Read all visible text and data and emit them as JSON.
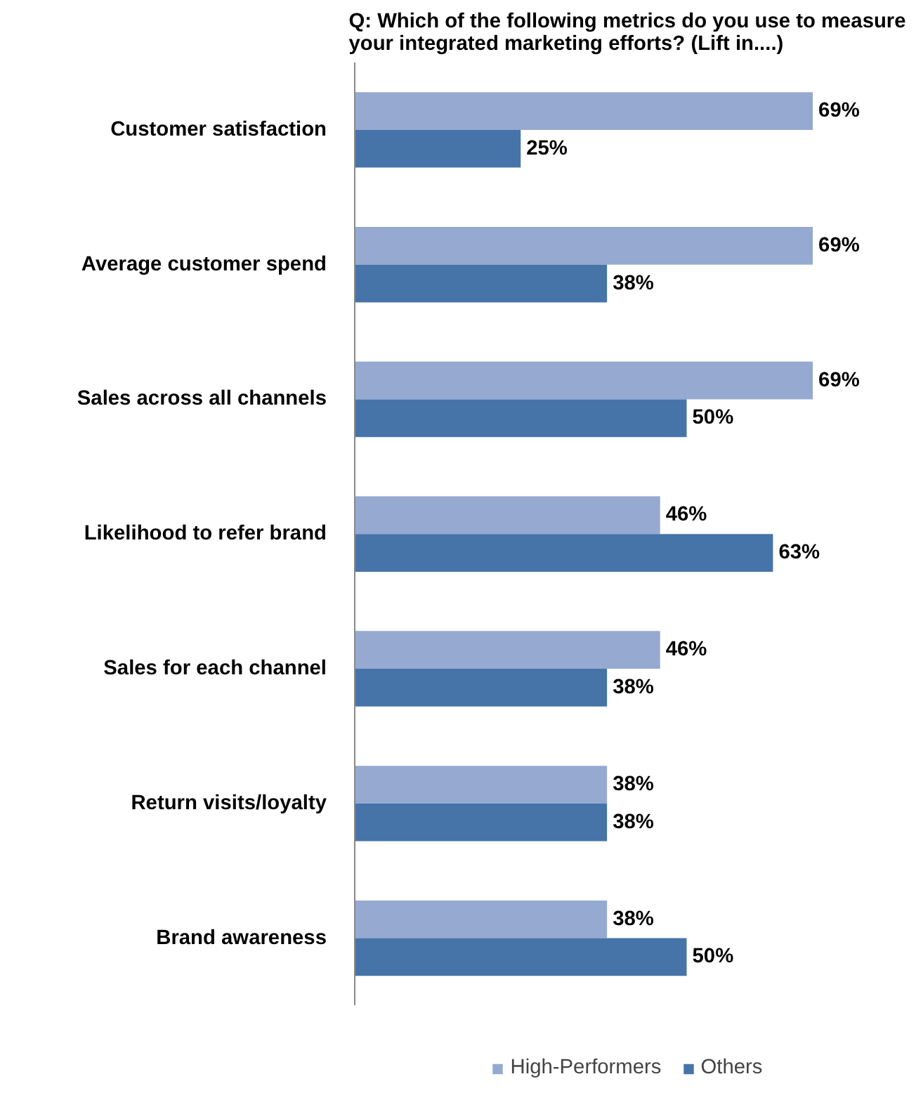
{
  "chart_data": {
    "type": "bar",
    "orientation": "horizontal",
    "title": "Q: Which of the following metrics do you use to measure\nyour integrated marketing efforts? (Lift in....)",
    "categories": [
      "Customer satisfaction",
      "Average customer spend",
      "Sales across all channels",
      "Likelihood to refer brand",
      "Sales for each channel",
      "Return visits/loyalty",
      "Brand awareness"
    ],
    "series": [
      {
        "name": "High-Performers",
        "color": "#95a9d1",
        "values": [
          69,
          69,
          69,
          46,
          46,
          38,
          38
        ],
        "value_labels": [
          "69%",
          "69%",
          "69%",
          "46%",
          "46%",
          "38%",
          "38%"
        ]
      },
      {
        "name": "Others",
        "color": "#4674a8",
        "values": [
          25,
          38,
          50,
          63,
          38,
          38,
          50
        ],
        "value_labels": [
          "25%",
          "38%",
          "50%",
          "63%",
          "38%",
          "38%",
          "50%"
        ]
      }
    ],
    "legend": "bottom",
    "grid": false
  }
}
